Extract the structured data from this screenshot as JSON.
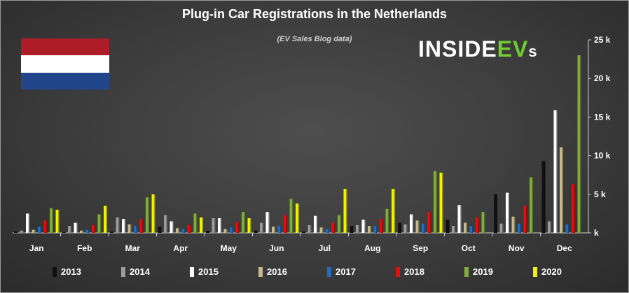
{
  "chart_data": {
    "type": "bar",
    "title": "Plug-in Car Registrations in the Netherlands",
    "subtitle": "(EV Sales Blog data)",
    "xlabel": "",
    "ylabel": "",
    "ylim": [
      0,
      25000
    ],
    "y_ticks": [
      0,
      5000,
      10000,
      15000,
      20000,
      25000
    ],
    "y_tick_labels": [
      "k",
      "5 k",
      "10 k",
      "15 k",
      "20 k",
      "25 k"
    ],
    "grid": false,
    "legend_position": "bottom",
    "categories": [
      "Jan",
      "Feb",
      "Mar",
      "Apr",
      "May",
      "Jun",
      "Jul",
      "Aug",
      "Sep",
      "Oct",
      "Nov",
      "Dec"
    ],
    "series": [
      {
        "name": "2013",
        "color": "#111111",
        "values": [
          200,
          100,
          150,
          800,
          250,
          300,
          150,
          900,
          1300,
          1700,
          5000,
          9300
        ]
      },
      {
        "name": "2014",
        "color": "#9c9c9c",
        "values": [
          300,
          900,
          2000,
          2300,
          1900,
          1300,
          1000,
          1000,
          1100,
          900,
          1200,
          1500
        ]
      },
      {
        "name": "2015",
        "color": "#ffffff",
        "values": [
          2500,
          1300,
          1800,
          1500,
          1900,
          2700,
          2200,
          1700,
          2400,
          3600,
          5200,
          15900
        ]
      },
      {
        "name": "2016",
        "color": "#c8b98c",
        "values": [
          400,
          300,
          1100,
          600,
          500,
          800,
          700,
          900,
          1600,
          1300,
          2100,
          11100
        ]
      },
      {
        "name": "2017",
        "color": "#1f6fbf",
        "values": [
          800,
          400,
          900,
          500,
          700,
          900,
          500,
          900,
          1200,
          900,
          1200,
          1100
        ]
      },
      {
        "name": "2018",
        "color": "#e01010",
        "values": [
          1600,
          1000,
          1800,
          1000,
          1400,
          2300,
          1300,
          1800,
          2700,
          2000,
          3500,
          6300
        ]
      },
      {
        "name": "2019",
        "color": "#7fae3c",
        "values": [
          3200,
          2400,
          4600,
          2500,
          2700,
          4400,
          2300,
          3100,
          8000,
          2700,
          7200,
          23000
        ]
      },
      {
        "name": "2020",
        "color": "#f2f200",
        "values": [
          3000,
          3500,
          5000,
          2000,
          1900,
          3800,
          5700,
          5700,
          7800,
          null,
          null,
          null
        ]
      }
    ]
  },
  "logo": {
    "part1": "INSIDE",
    "part2": "EV",
    "part3": "s"
  }
}
